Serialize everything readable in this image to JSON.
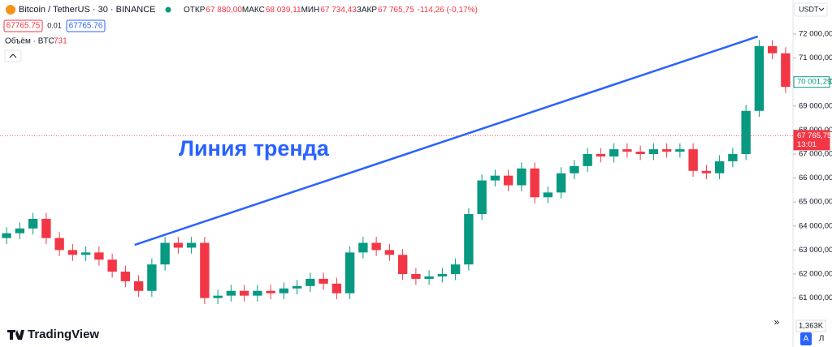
{
  "chart_data": {
    "type": "candlestick",
    "title": "Bitcoin / TetherUS · 30 · BINANCE",
    "ohlc_header": [
      {
        "label": "ОТКР",
        "value": "67 880,00"
      },
      {
        "label": "МАКС",
        "value": "68 039,11"
      },
      {
        "label": "МИН",
        "value": "67 734,43"
      },
      {
        "label": "ЗАКР",
        "value": "67 765,75"
      }
    ],
    "change": "-114,26 (-0,17%)",
    "bid": "67765.75",
    "spread": "0.01",
    "ask": "67765.76",
    "volume_label": "Объём · BTC",
    "volume_value": "731",
    "currency": "USDT",
    "volume_axis_label": "1,363K",
    "logo": "TradingView",
    "buttons": [
      "A",
      "Л"
    ],
    "up_color": "#089981",
    "down_color": "#f23645",
    "ylim": [
      58960,
      73420
    ],
    "yticks": [
      {
        "value": 61000,
        "label": "61 000,00"
      },
      {
        "value": 62000,
        "label": "62 000,00"
      },
      {
        "value": 63000,
        "label": "63 000,00"
      },
      {
        "value": 64000,
        "label": "64 000,00"
      },
      {
        "value": 65000,
        "label": "65 000,00"
      },
      {
        "value": 66000,
        "label": "66 000,00"
      },
      {
        "value": 67000,
        "label": "67 000,00"
      },
      {
        "value": 68000,
        "label": "68 000,00"
      },
      {
        "value": 69000,
        "label": "69 000,00"
      },
      {
        "value": 70000,
        "label": "70 000,00"
      },
      {
        "value": 71000,
        "label": "71 000,00"
      },
      {
        "value": 72000,
        "label": "72 000,00"
      }
    ],
    "price_labels": [
      {
        "value": 67765.75,
        "label": "67 765,75",
        "time": "13:01",
        "color": "#f23645"
      },
      {
        "value": 70001.29,
        "label": "70 001,29",
        "color": "#089981"
      }
    ],
    "trend_line": {
      "label": "Линия тренда",
      "color": "#2962ff",
      "x": [
        9.7,
        56.9
      ],
      "y": [
        63216,
        71900
      ]
    },
    "open": [
      63500,
      63700,
      63900,
      64300,
      63500,
      63000,
      62800,
      62900,
      62600,
      62100,
      61700,
      61300,
      62400,
      63300,
      63100,
      63300,
      61000,
      61100,
      61300,
      61100,
      61300,
      61200,
      61400,
      61500,
      61800,
      61600,
      61200,
      62900,
      63300,
      63000,
      62800,
      62000,
      61800,
      61900,
      62000,
      62400,
      64500,
      65900,
      66100,
      65700,
      66400,
      65200,
      65400,
      66200,
      66500,
      67000,
      66900,
      67200,
      67100,
      67000,
      67200,
      67100,
      67200,
      66300,
      66200,
      66700,
      67000,
      68800,
      71500,
      71200
    ],
    "high": [
      63950,
      64150,
      64550,
      64550,
      63750,
      63250,
      63150,
      63150,
      62850,
      62350,
      61950,
      62650,
      63550,
      63550,
      63550,
      63550,
      61350,
      61550,
      61550,
      61550,
      61550,
      61650,
      61750,
      62050,
      62050,
      61850,
      63150,
      63550,
      63550,
      63250,
      63050,
      62250,
      62150,
      62250,
      62650,
      64750,
      66150,
      66350,
      66350,
      66650,
      66650,
      65650,
      66450,
      66750,
      67250,
      67250,
      67450,
      67450,
      67350,
      67450,
      67450,
      67450,
      67450,
      66550,
      66950,
      67250,
      69050,
      71750,
      71750,
      71450
    ],
    "low": [
      63250,
      63450,
      63650,
      63250,
      62750,
      62550,
      62550,
      62350,
      61850,
      61450,
      61050,
      61050,
      62150,
      62850,
      62850,
      60750,
      60750,
      60850,
      60850,
      60850,
      60950,
      60950,
      61150,
      61250,
      61350,
      60950,
      60950,
      62650,
      62750,
      62550,
      61750,
      61550,
      61550,
      61650,
      61750,
      62150,
      64250,
      65650,
      65450,
      65450,
      64950,
      64950,
      65150,
      65950,
      66250,
      66650,
      66650,
      66850,
      66750,
      66750,
      66850,
      66850,
      66050,
      65950,
      65950,
      66450,
      66750,
      68550,
      70950,
      69550
    ],
    "close": [
      63700,
      63900,
      64300,
      63500,
      63000,
      62800,
      62900,
      62600,
      62100,
      61700,
      61300,
      62400,
      63300,
      63100,
      63300,
      61000,
      61100,
      61300,
      61100,
      61300,
      61200,
      61400,
      61500,
      61800,
      61600,
      61200,
      62900,
      63300,
      63000,
      62800,
      62000,
      61800,
      61900,
      62000,
      62400,
      64500,
      65900,
      66100,
      65700,
      66400,
      65200,
      65400,
      66200,
      66500,
      67000,
      66900,
      67200,
      67100,
      67000,
      67200,
      67100,
      67200,
      66300,
      66200,
      66700,
      67000,
      68800,
      71500,
      71200,
      69800
    ]
  }
}
